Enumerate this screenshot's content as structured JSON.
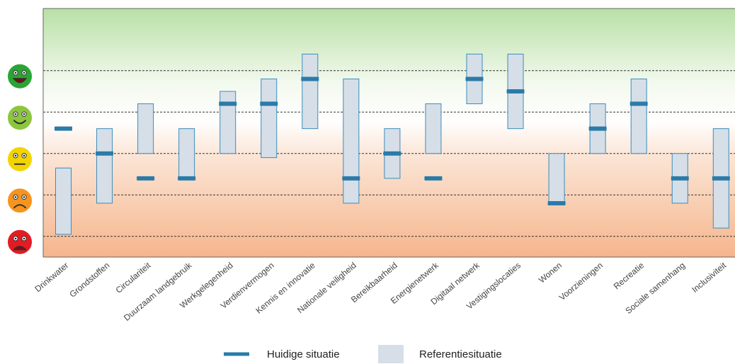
{
  "chart_data": {
    "type": "range-bar",
    "title": "",
    "xlabel": "",
    "ylabel": "",
    "ylim": [
      0.5,
      6.5
    ],
    "grid": true,
    "y_levels": [
      {
        "value": 5,
        "icon": "very-happy-smiley-icon",
        "color": "#2aa533"
      },
      {
        "value": 4,
        "icon": "happy-smiley-icon",
        "color": "#8cc63f"
      },
      {
        "value": 3,
        "icon": "neutral-smiley-icon",
        "color": "#f2d500"
      },
      {
        "value": 2,
        "icon": "sad-smiley-icon",
        "color": "#f7941d"
      },
      {
        "value": 1,
        "icon": "very-sad-smiley-icon",
        "color": "#e31b23"
      }
    ],
    "categories": [
      "Drinkwater",
      "Grondstoffen",
      "Circulariteit",
      "Duurzaam landgebruik",
      "Werkgelegenheid",
      "Verdienvermogen",
      "Kennis en innovatie",
      "Nationale veiligheid",
      "Bereikbaarheid",
      "Energienetwerk",
      "Digitaal netwerk",
      "Vestigingslocaties",
      "Wonen",
      "Voorzieningen",
      "Recreatie",
      "Sociale samenhang",
      "Inclusiviteit"
    ],
    "series": [
      {
        "name": "Huidige situatie",
        "color": "#2b7ba8",
        "values": [
          3.6,
          3.0,
          2.4,
          2.4,
          4.2,
          4.2,
          4.8,
          2.4,
          3.0,
          2.4,
          4.8,
          4.5,
          1.8,
          3.6,
          4.2,
          2.4,
          2.4
        ]
      },
      {
        "name": "Referentiesituatie",
        "color": "#d6dee8",
        "ranges": [
          [
            1.05,
            2.65
          ],
          [
            1.8,
            3.6
          ],
          [
            3.0,
            4.2
          ],
          [
            2.4,
            3.6
          ],
          [
            3.0,
            4.5
          ],
          [
            2.9,
            4.8
          ],
          [
            3.6,
            5.4
          ],
          [
            1.8,
            4.8
          ],
          [
            2.4,
            3.6
          ],
          [
            3.0,
            4.2
          ],
          [
            4.2,
            5.4
          ],
          [
            3.6,
            5.4
          ],
          [
            1.8,
            3.0
          ],
          [
            3.0,
            4.2
          ],
          [
            3.0,
            4.8
          ],
          [
            1.8,
            3.0
          ],
          [
            1.2,
            3.6
          ]
        ]
      }
    ],
    "legend": {
      "position": "bottom",
      "items": [
        "Huidige situatie",
        "Referentiesituatie"
      ]
    }
  }
}
